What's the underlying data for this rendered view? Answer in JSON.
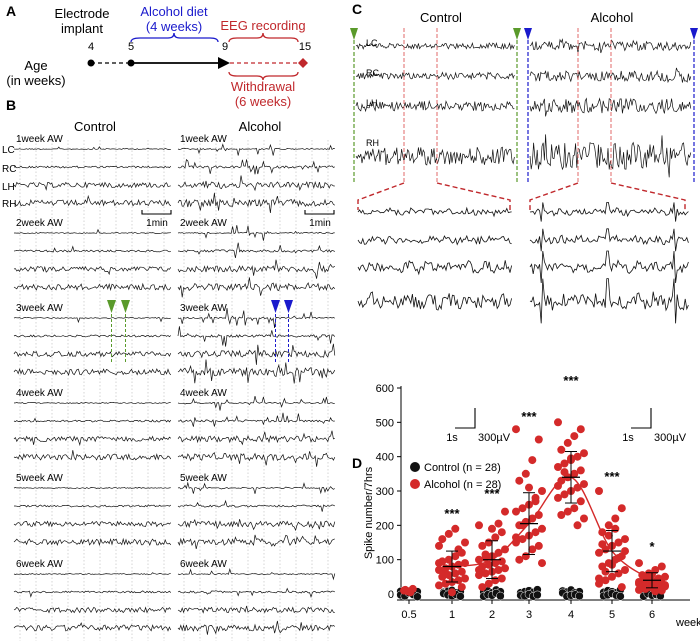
{
  "panel_a": {
    "label": "A",
    "electrode_label": "Electrode\nimplant",
    "diet_label": "Alcohol diet\n(4 weeks)",
    "eeg_label": "EEG recording",
    "withdrawal_label": "Withdrawal\n(6 weeks)",
    "age_label": "Age\n(in weeks)",
    "ticks": [
      "4",
      "5",
      "9",
      "15"
    ],
    "colors": {
      "diet": "#1a1acc",
      "withdrawal": "#c0282c"
    }
  },
  "panel_b": {
    "label": "B",
    "control_title": "Control",
    "alcohol_title": "Alcohol",
    "channels": [
      "LC",
      "RC",
      "LH",
      "RH"
    ],
    "scale_label": "1min",
    "weeks": [
      "1week AW",
      "2week AW",
      "3week AW",
      "4week AW",
      "5week AW",
      "6week AW"
    ]
  },
  "panel_c": {
    "label": "C",
    "control_title": "Control",
    "alcohol_title": "Alcohol",
    "channels": [
      "LC",
      "RC",
      "LH",
      "RH"
    ],
    "scale_time": "1s",
    "scale_amp": "300µV"
  },
  "panel_d": {
    "label": "D",
    "legend": [
      {
        "label": "Control (n = 28)",
        "color": "#111111"
      },
      {
        "label": "Alcohol (n = 28)",
        "color": "#d42a2a"
      }
    ]
  },
  "chart_data": {
    "type": "scatter",
    "xlabel": "week",
    "ylabel": "Spike number/7hrs",
    "x_ticks": [
      "0.5",
      "1",
      "2",
      "3",
      "4",
      "5",
      "6"
    ],
    "y_ticks": [
      "0",
      "100",
      "200",
      "300",
      "400",
      "500",
      "600"
    ],
    "ylim": [
      0,
      600
    ],
    "categories": [
      "0.5",
      "1",
      "2",
      "3",
      "4",
      "5",
      "6"
    ],
    "series": [
      {
        "name": "Control (n = 28)",
        "color": "#111111",
        "means": [
          5,
          5,
          5,
          5,
          5,
          5,
          5
        ],
        "points": [
          [
            5,
            8,
            2,
            10,
            4,
            6,
            3,
            12,
            7,
            1
          ],
          [
            2,
            5,
            8,
            1,
            4,
            10,
            6,
            3,
            7,
            2
          ],
          [
            3,
            6,
            1,
            9,
            4,
            2,
            7,
            5,
            11,
            3
          ],
          [
            1,
            4,
            7,
            2,
            10,
            5,
            3,
            8,
            2,
            6
          ],
          [
            6,
            3,
            9,
            1,
            4,
            12,
            2,
            5,
            7,
            3
          ],
          [
            2,
            7,
            4,
            1,
            9,
            3,
            6,
            10,
            5,
            2
          ],
          [
            4,
            1,
            8,
            3,
            6,
            2,
            10,
            5,
            7,
            3
          ]
        ]
      },
      {
        "name": "Alcohol (n = 28)",
        "color": "#d42a2a",
        "means": [
          8,
          80,
          100,
          205,
          340,
          125,
          40
        ],
        "sd": [
          4,
          45,
          55,
          90,
          75,
          60,
          22
        ],
        "points": [
          [
            10,
            15,
            5,
            8,
            12
          ],
          [
            140,
            120,
            110,
            100,
            95,
            90,
            85,
            80,
            75,
            70,
            65,
            60,
            55,
            50,
            45,
            40,
            35,
            30,
            25,
            20,
            190,
            175,
            160,
            150,
            130,
            5,
            60,
            90
          ],
          [
            200,
            180,
            165,
            150,
            140,
            130,
            120,
            110,
            105,
            100,
            95,
            90,
            85,
            80,
            75,
            70,
            65,
            60,
            55,
            45,
            40,
            30,
            20,
            240,
            205,
            190,
            115,
            70
          ],
          [
            480,
            450,
            390,
            350,
            330,
            300,
            280,
            260,
            250,
            240,
            230,
            220,
            210,
            200,
            190,
            180,
            170,
            160,
            150,
            140,
            130,
            110,
            100,
            90,
            270,
            310,
            200,
            165
          ],
          [
            500,
            480,
            460,
            440,
            420,
            410,
            400,
            390,
            380,
            370,
            360,
            350,
            340,
            330,
            320,
            310,
            300,
            290,
            280,
            270,
            250,
            240,
            230,
            220,
            200,
            395,
            355,
            315
          ],
          [
            300,
            250,
            220,
            200,
            180,
            160,
            150,
            140,
            130,
            120,
            110,
            100,
            90,
            80,
            70,
            60,
            50,
            40,
            30,
            20,
            190,
            170,
            145,
            125,
            105,
            85,
            65,
            45
          ],
          [
            90,
            80,
            70,
            60,
            55,
            50,
            45,
            40,
            38,
            35,
            32,
            30,
            28,
            25,
            22,
            20,
            18,
            15,
            12,
            10,
            8,
            42,
            36,
            26,
            16,
            58,
            48,
            30
          ]
        ]
      }
    ],
    "fit_curve": {
      "color": "#d42a2a"
    },
    "significance": [
      "",
      "***",
      "***",
      "***",
      "***",
      "***",
      "*"
    ],
    "grid": false
  }
}
